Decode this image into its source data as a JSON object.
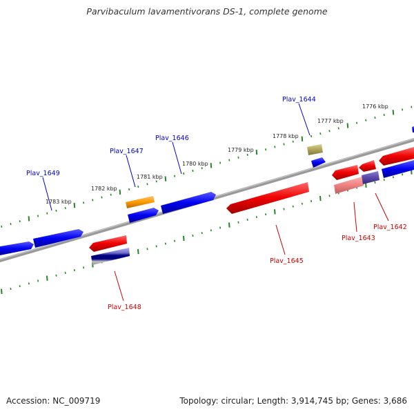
{
  "title": "Parvibaculum lavamentivorans DS-1, complete genome",
  "footer": {
    "accession": "Accession: NC_009719",
    "topology": "Topology: circular; Length: 3,914,745 bp; Genes: 3,686"
  },
  "colors": {
    "forward_gene": "#0000ee",
    "reverse_gene": "#ee0000",
    "backbone": "#888888",
    "ticks": "#228822",
    "label_forward": "#0000cc",
    "label_reverse": "#cc0000"
  },
  "ruler": [
    "1776 kbp",
    "1777 kbp",
    "1778 kbp",
    "1779 kbp",
    "1780 kbp",
    "1781 kbp",
    "1782 kbp",
    "1783 kbp"
  ],
  "gene_labels_forward": [
    "Plav_1644",
    "Plav_1646",
    "Plav_1647",
    "Plav_1649"
  ],
  "gene_labels_reverse": [
    "Plav_1642",
    "Plav_1643",
    "Plav_1645",
    "Plav_1648"
  ]
}
